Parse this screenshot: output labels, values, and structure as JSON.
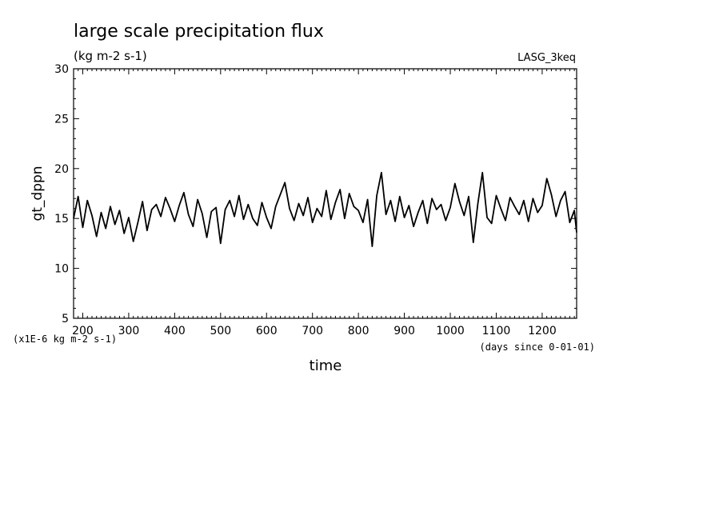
{
  "chart_data": {
    "type": "line",
    "title": "large scale precipitation flux",
    "subtitle": "(kg m-2 s-1)",
    "experiment_label": "LASG_3keq",
    "ylabel": "gt_dppn",
    "xlabel": "time",
    "y_unit_note": "(x1E-6 kg m-2 s-1)",
    "x_unit_note": "(days since 0-01-01)",
    "xlim": [
      180,
      1275
    ],
    "ylim": [
      5,
      30
    ],
    "x_ticks": [
      200,
      300,
      400,
      500,
      600,
      700,
      800,
      900,
      1000,
      1100,
      1200
    ],
    "x_tick_labels": [
      "200",
      "300",
      "400",
      "500",
      "600",
      "700",
      "800",
      "900",
      "1000",
      "1100",
      "1200"
    ],
    "y_ticks": [
      5,
      10,
      15,
      20,
      25,
      30
    ],
    "y_tick_labels": [
      "5",
      "10",
      "15",
      "20",
      "25",
      "30"
    ],
    "x": [
      180,
      190,
      200,
      210,
      220,
      230,
      240,
      250,
      260,
      270,
      280,
      290,
      300,
      310,
      320,
      330,
      340,
      350,
      360,
      370,
      380,
      390,
      400,
      410,
      420,
      430,
      440,
      450,
      460,
      470,
      480,
      490,
      500,
      510,
      520,
      530,
      540,
      550,
      560,
      570,
      580,
      590,
      600,
      610,
      620,
      630,
      640,
      650,
      660,
      670,
      680,
      690,
      700,
      710,
      720,
      730,
      740,
      750,
      760,
      770,
      780,
      790,
      800,
      810,
      820,
      830,
      840,
      850,
      860,
      870,
      880,
      890,
      900,
      910,
      920,
      930,
      940,
      950,
      960,
      970,
      980,
      990,
      1000,
      1010,
      1020,
      1030,
      1040,
      1050,
      1060,
      1070,
      1080,
      1090,
      1100,
      1110,
      1120,
      1130,
      1140,
      1150,
      1160,
      1170,
      1180,
      1190,
      1200,
      1210,
      1220,
      1230,
      1240,
      1250,
      1260,
      1270,
      1275
    ],
    "y": [
      15.0,
      17.2,
      14.1,
      16.8,
      15.3,
      13.2,
      15.6,
      14.0,
      16.2,
      14.4,
      15.8,
      13.5,
      15.1,
      12.7,
      14.6,
      16.7,
      13.8,
      15.9,
      16.4,
      15.2,
      17.1,
      16.0,
      14.7,
      16.3,
      17.6,
      15.4,
      14.2,
      16.9,
      15.5,
      13.1,
      15.7,
      16.1,
      12.5,
      15.9,
      16.8,
      15.2,
      17.3,
      14.9,
      16.4,
      15.0,
      14.3,
      16.6,
      15.1,
      14.0,
      16.2,
      17.4,
      18.6,
      16.0,
      14.8,
      16.5,
      15.3,
      17.1,
      14.6,
      16.0,
      15.2,
      17.8,
      14.9,
      16.6,
      17.9,
      15.0,
      17.5,
      16.2,
      15.8,
      14.6,
      16.9,
      12.2,
      17.3,
      19.6,
      15.4,
      16.8,
      14.7,
      17.2,
      15.1,
      16.3,
      14.2,
      15.6,
      16.8,
      14.5,
      17.0,
      15.9,
      16.4,
      14.8,
      16.1,
      18.5,
      16.7,
      15.3,
      17.2,
      12.6,
      16.5,
      19.6,
      15.1,
      14.5,
      17.3,
      16.0,
      14.8,
      17.1,
      16.2,
      15.4,
      16.8,
      14.7,
      17.0,
      15.6,
      16.3,
      19.0,
      17.4,
      15.2,
      16.8,
      17.7,
      14.6,
      15.8,
      13.6
    ]
  }
}
